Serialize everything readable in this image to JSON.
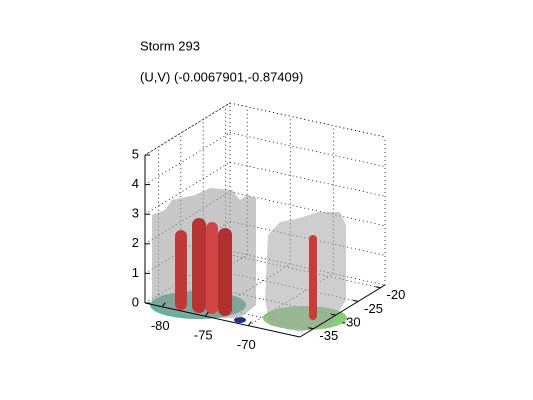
{
  "chart_data": {
    "type": "isosurface3d",
    "title": "Storm 293",
    "subtitle": "(U,V) (-0.0067901,-0.87409)",
    "xlim": [
      -82,
      -64
    ],
    "xticks": [
      -80,
      -75,
      -70
    ],
    "ylim": [
      -38,
      -19
    ],
    "yticks": [
      -35,
      -30,
      -25,
      -20
    ],
    "zlim": [
      0,
      5
    ],
    "zticks": [
      0,
      1,
      2,
      3,
      4,
      5
    ],
    "grid": true
  }
}
